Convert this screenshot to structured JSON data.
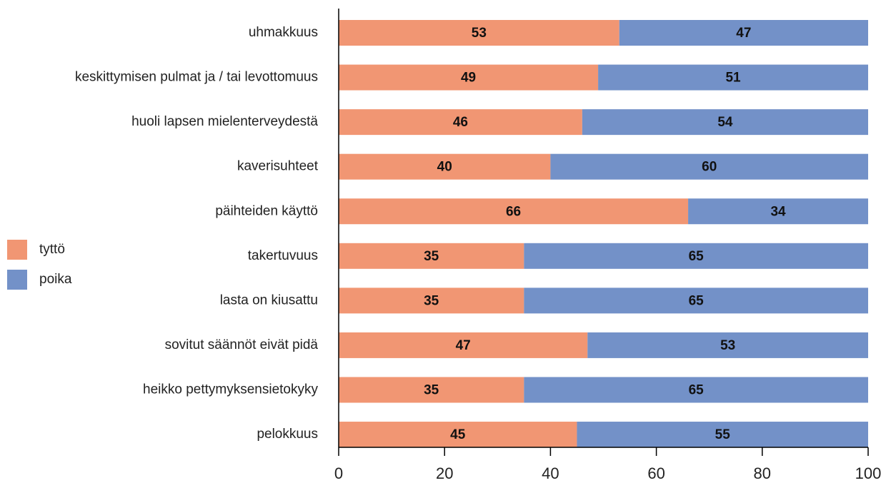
{
  "chart_data": {
    "type": "bar",
    "orientation": "horizontal",
    "stacked": true,
    "categories": [
      "uhmakkuus",
      "keskittymisen pulmat ja / tai levottomuus",
      "huoli lapsen mielenterveydestä",
      "kaverisuhteet",
      "päihteiden käyttö",
      "takertuvuus",
      "lasta on kiusattu",
      "sovitut säännöt eivät pidä",
      "heikko pettymyksensietokyky",
      "pelokkuus"
    ],
    "series": [
      {
        "name": "tyttö",
        "color": "#f19673",
        "values": [
          53,
          49,
          46,
          40,
          66,
          35,
          35,
          47,
          35,
          45
        ]
      },
      {
        "name": "poika",
        "color": "#7391c8",
        "values": [
          47,
          51,
          54,
          60,
          34,
          65,
          65,
          53,
          65,
          55
        ]
      }
    ],
    "xlim": [
      0,
      100
    ],
    "xticks": [
      0,
      20,
      40,
      60,
      80,
      100
    ],
    "legend": "left"
  }
}
